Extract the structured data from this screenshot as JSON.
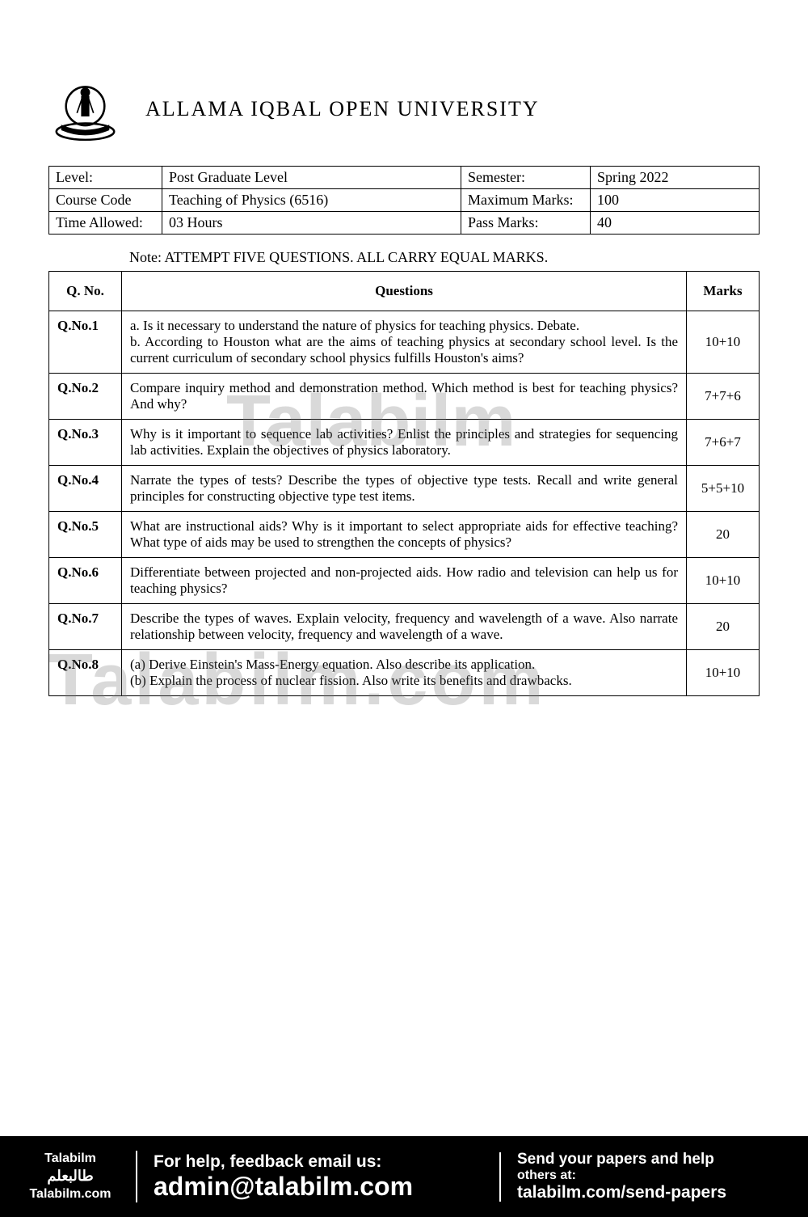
{
  "university": "ALLAMA IQBAL OPEN UNIVERSITY",
  "watermarks": {
    "wm1": "Talabilm",
    "wm2": "Talabilm.com"
  },
  "info": {
    "level_label": "Level:",
    "level_value": "Post Graduate Level",
    "semester_label": "Semester:",
    "semester_value": "Spring 2022",
    "course_label": "Course Code",
    "course_value": "Teaching of Physics  (6516)",
    "maxmarks_label": "Maximum Marks:",
    "maxmarks_value": "100",
    "time_label": "Time Allowed:",
    "time_value": "03 Hours",
    "passmarks_label": "Pass Marks:",
    "passmarks_value": "40"
  },
  "note": "Note:    ATTEMPT FIVE QUESTIONS. ALL CARRY EQUAL MARKS.",
  "headers": {
    "qno": "Q. No.",
    "question": "Questions",
    "marks": "Marks"
  },
  "questions": [
    {
      "no": "Q.No.1",
      "text": "a.     Is it necessary to understand the nature of physics for teaching physics. Debate.\nb.     According to Houston what are the aims of teaching physics at secondary school level. Is the current curriculum of secondary school physics fulfills Houston's aims?",
      "marks": "10+10"
    },
    {
      "no": "Q.No.2",
      "text": "  Compare inquiry method and demonstration method. Which method is best for teaching physics? And why?",
      "marks": "7+7+6"
    },
    {
      "no": "Q.No.3",
      "text": "Why is it important to sequence lab activities? Enlist the principles and strategies for sequencing lab activities. Explain the objectives of physics laboratory.",
      "marks": "7+6+7"
    },
    {
      "no": "Q.No.4",
      "text": "Narrate the types of tests? Describe the types of objective type tests. Recall and write general principles for constructing objective type test items.",
      "marks": "5+5+10"
    },
    {
      "no": "Q.No.5",
      "text": "What are instructional aids? Why is it important to select appropriate aids for effective teaching? What type of aids may be used to strengthen the concepts of physics?",
      "marks": "20"
    },
    {
      "no": "Q.No.6",
      "text": "Differentiate between projected and non-projected aids. How radio and television can help us for teaching physics?",
      "marks": "10+10"
    },
    {
      "no": "Q.No.7",
      "text": "Describe the types of waves. Explain velocity, frequency and wavelength of a wave. Also narrate relationship between velocity, frequency and wavelength of a wave.",
      "marks": "20"
    },
    {
      "no": "Q.No.8",
      "text": "(a)   Derive Einstein's Mass-Energy equation. Also describe its application.\n(b)   Explain the process of nuclear fission. Also write its benefits and drawbacks.",
      "marks": "10+10"
    }
  ],
  "footer": {
    "brand1": "Talabilm",
    "brand2": "طالبعلم",
    "brand3": "Talabilm.com",
    "help1": "For help, feedback email us:",
    "help2": "admin@talabilm.com",
    "send1": "Send your papers and help",
    "send2": "others at:",
    "send3": "talabilm.com/send-papers"
  }
}
